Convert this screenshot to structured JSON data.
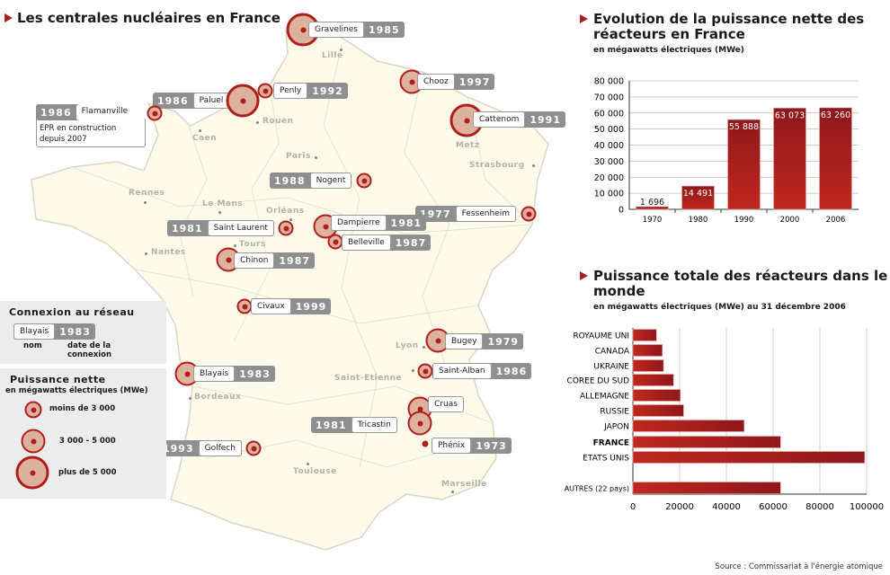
{
  "map": {
    "title": "Les centrales nucléaires en France",
    "cities": [
      "Lille",
      "Rouen",
      "Caen",
      "Paris",
      "Metz",
      "Strasbourg",
      "Rennes",
      "Le Mans",
      "Orléans",
      "Tours",
      "Nantes",
      "Lyon",
      "Saint-Etienne",
      "Bordeaux",
      "Toulouse",
      "Marseille"
    ],
    "plants": [
      {
        "name": "Gravelines",
        "year": "1985",
        "size": "plus de 5 000"
      },
      {
        "name": "Penly",
        "year": "1992",
        "size": "moins de 3 000"
      },
      {
        "name": "Paluel",
        "year": "1986",
        "size": "plus de 5 000"
      },
      {
        "name": "Flamanville",
        "year": "1986",
        "size": "moins de 3 000",
        "note": "EPR en construction depuis 2007"
      },
      {
        "name": "Chooz",
        "year": "1997",
        "size": "3 000 - 5 000"
      },
      {
        "name": "Cattenom",
        "year": "1991",
        "size": "plus de 5 000"
      },
      {
        "name": "Nogent",
        "year": "1988",
        "size": "moins de 3 000"
      },
      {
        "name": "Fessenheim",
        "year": "1977",
        "size": "moins de 3 000"
      },
      {
        "name": "Dampierre",
        "year": "1981",
        "size": "3 000 - 5 000"
      },
      {
        "name": "Belleville",
        "year": "1987",
        "size": "moins de 3 000"
      },
      {
        "name": "Saint Laurent",
        "year": "1981",
        "size": "moins de 3 000"
      },
      {
        "name": "Chinon",
        "year": "1987",
        "size": "3 000 - 5 000"
      },
      {
        "name": "Civaux",
        "year": "1999",
        "size": "moins de 3 000"
      },
      {
        "name": "Blayais",
        "year": "1983",
        "size": "3 000 - 5 000"
      },
      {
        "name": "Golfech",
        "year": "1993",
        "size": "moins de 3 000"
      },
      {
        "name": "Bugey",
        "year": "1979",
        "size": "3 000 - 5 000"
      },
      {
        "name": "Saint-Alban",
        "year": "1986",
        "size": "moins de 3 000"
      },
      {
        "name": "Cruas",
        "size": "3 000 - 5 000"
      },
      {
        "name": "Tricastin",
        "year": "1981",
        "size": "3 000 - 5 000"
      },
      {
        "name": "Phénix",
        "year": "1973"
      }
    ],
    "colors": {
      "accent": "#b01d1d",
      "circle_fill": "#dcb29c",
      "land": "#fdfaea",
      "label_gray": "#8f8f8f"
    }
  },
  "legend": {
    "connexion_title": "Connexion au réseau",
    "example_name": "Blayais",
    "example_year": "1983",
    "name_caption": "nom",
    "date_caption": "date de la connexion",
    "power_title": "Puissance nette",
    "power_unit": "en mégawatts électriques (MWe)",
    "sizes": [
      "moins de 3 000",
      "3 000 - 5 000",
      "plus de 5 000"
    ]
  },
  "chart_data": [
    {
      "type": "bar",
      "title": "Evolution de la puissance nette des réacteurs en France",
      "subtitle": "en mégawatts électriques (MWe)",
      "categories": [
        "1970",
        "1980",
        "1990",
        "2000",
        "2006"
      ],
      "values": [
        1696,
        14491,
        55888,
        63073,
        63260
      ],
      "data_labels": [
        "1 696",
        "14 491",
        "55 888",
        "63 073",
        "63 260"
      ],
      "ylim": [
        0,
        80000
      ],
      "yticks": [
        "0",
        "10 000",
        "20 000",
        "30 000",
        "40 000",
        "50 000",
        "60 000",
        "70 000",
        "80 000"
      ],
      "grid": true
    },
    {
      "type": "bar",
      "orientation": "horizontal",
      "title": "Puissance totale des réacteurs dans le monde",
      "subtitle": "en mégawatts électriques (MWe) au 31 décembre 2006",
      "categories": [
        "ROYAUME UNI",
        "CANADA",
        "UKRAINE",
        "COREE DU SUD",
        "ALLEMAGNE",
        "RUSSIE",
        "JAPON",
        "FRANCE",
        "ETATS UNIS",
        "AUTRES (22 pays)"
      ],
      "values": [
        10100,
        12600,
        13100,
        17400,
        20300,
        21700,
        47600,
        63200,
        99200,
        63200
      ],
      "highlight": "FRANCE",
      "xlim": [
        0,
        100000
      ],
      "xticks": [
        "0",
        "20000",
        "40000",
        "60000",
        "80000",
        "100000"
      ],
      "grid": true
    }
  ],
  "source": "Source : Commissariat à l'énergie atomique"
}
